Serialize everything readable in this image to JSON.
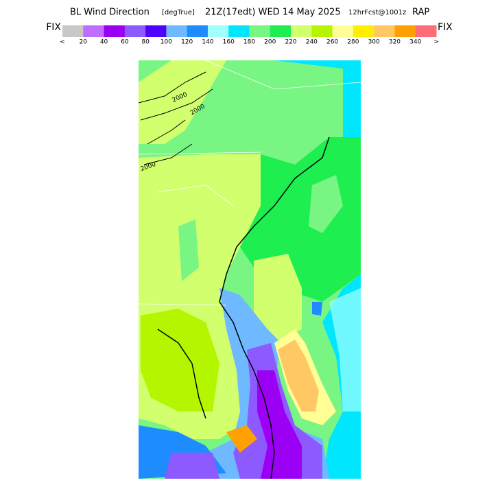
{
  "header": {
    "title": "BL Wind Direction",
    "units": "[degTrue]",
    "valid": "21Z(17edt) WED 14 May 2025",
    "forecast": "12hrFcst@1001z",
    "model": "RAP"
  },
  "colorbar": {
    "left_label": "FIX",
    "right_label": "FIX",
    "colors": [
      "#c8c8c8",
      "#be6eff",
      "#9b00f5",
      "#8c5aff",
      "#5000ff",
      "#6eb9ff",
      "#1e8cff",
      "#a0ffff",
      "#00e6ff",
      "#78f582",
      "#1eee50",
      "#d2ff6e",
      "#b4f500",
      "#ffff96",
      "#ffee00",
      "#ffc864",
      "#ffa000",
      "#ff6e78"
    ],
    "labels": [
      "<",
      20,
      40,
      60,
      80,
      100,
      120,
      140,
      160,
      180,
      200,
      220,
      240,
      260,
      280,
      300,
      320,
      340,
      ">"
    ]
  },
  "map": {
    "contour_labels": [
      "2000",
      "2000",
      "2000"
    ]
  }
}
